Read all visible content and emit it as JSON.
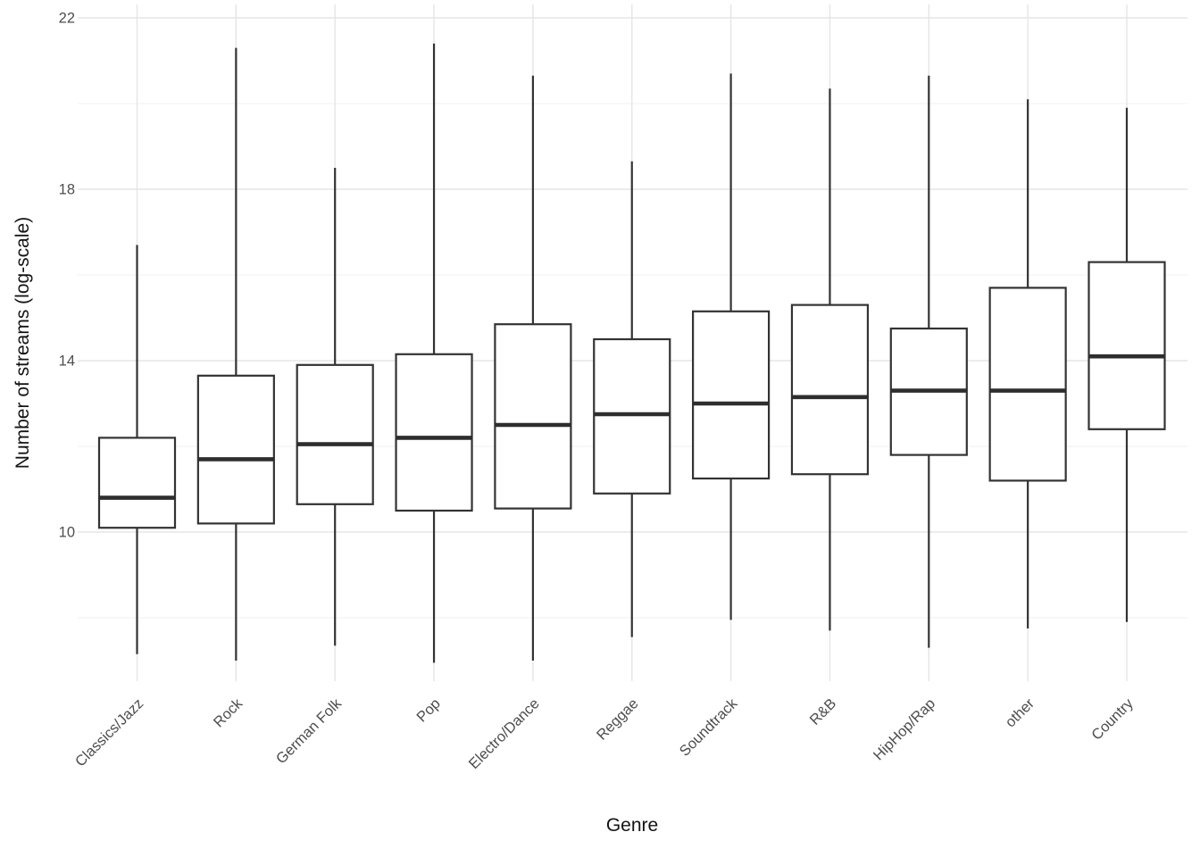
{
  "chart_data": {
    "type": "boxplot",
    "title": "",
    "xlabel": "Genre",
    "ylabel": "Number of streams (log-scale)",
    "legend": "none",
    "y_axis": {
      "tick_labels_major": [
        22,
        18,
        14,
        10
      ],
      "ticks_minor": [
        20,
        16,
        12,
        8
      ],
      "range_top": 22.3,
      "range_bottom": 6.5,
      "grid": "on"
    },
    "x_axis": {
      "label_rotation_deg": 45,
      "grid": "vertical gridline at each category"
    },
    "categories": [
      "Classics/Jazz",
      "Rock",
      "German Folk",
      "Pop",
      "Electro/Dance",
      "Reggae",
      "Soundtrack",
      "R&B",
      "HipHop/Rap",
      "other",
      "Country"
    ],
    "boxes": [
      {
        "category": "Classics/Jazz",
        "whisker_low": 7.15,
        "q1": 10.1,
        "median": 10.8,
        "q3": 12.2,
        "whisker_high": 16.7
      },
      {
        "category": "Rock",
        "whisker_low": 7.0,
        "q1": 10.2,
        "median": 11.7,
        "q3": 13.65,
        "whisker_high": 21.3
      },
      {
        "category": "German Folk",
        "whisker_low": 7.35,
        "q1": 10.65,
        "median": 12.05,
        "q3": 13.9,
        "whisker_high": 18.5
      },
      {
        "category": "Pop",
        "whisker_low": 6.95,
        "q1": 10.5,
        "median": 12.2,
        "q3": 14.15,
        "whisker_high": 21.4
      },
      {
        "category": "Electro/Dance",
        "whisker_low": 7.0,
        "q1": 10.55,
        "median": 12.5,
        "q3": 14.85,
        "whisker_high": 20.65
      },
      {
        "category": "Reggae",
        "whisker_low": 7.55,
        "q1": 10.9,
        "median": 12.75,
        "q3": 14.5,
        "whisker_high": 18.65
      },
      {
        "category": "Soundtrack",
        "whisker_low": 7.95,
        "q1": 11.25,
        "median": 13.0,
        "q3": 15.15,
        "whisker_high": 20.7
      },
      {
        "category": "R&B",
        "whisker_low": 7.7,
        "q1": 11.35,
        "median": 13.15,
        "q3": 15.3,
        "whisker_high": 20.35
      },
      {
        "category": "HipHop/Rap",
        "whisker_low": 7.3,
        "q1": 11.8,
        "median": 13.3,
        "q3": 14.75,
        "whisker_high": 20.65
      },
      {
        "category": "other",
        "whisker_low": 7.75,
        "q1": 11.2,
        "median": 13.3,
        "q3": 15.7,
        "whisker_high": 20.1
      },
      {
        "category": "Country",
        "whisker_low": 7.9,
        "q1": 12.4,
        "median": 14.1,
        "q3": 16.3,
        "whisker_high": 19.9
      }
    ]
  },
  "colors": {
    "background": "#ffffff",
    "box_stroke": "#333333",
    "box_fill": "#ffffff",
    "median_stroke": "#2e2e2e",
    "grid_major": "#e5e5e5",
    "grid_minor": "#f1f1f1",
    "tick_label": "#4d4d4d",
    "axis_title": "#141414"
  }
}
